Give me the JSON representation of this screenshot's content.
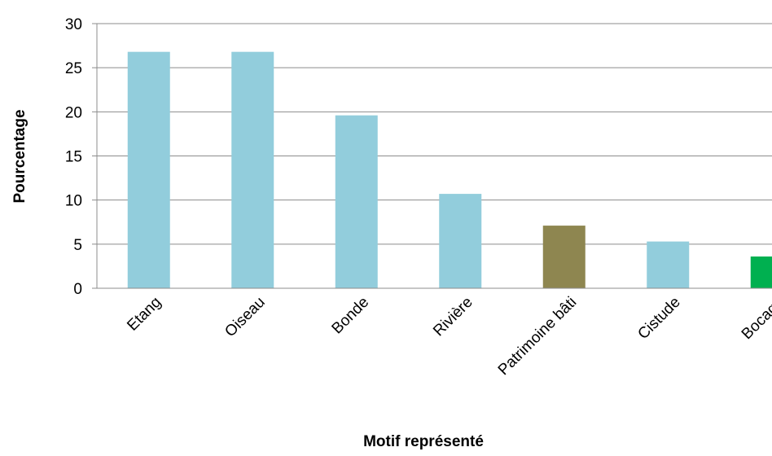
{
  "chart_data": {
    "type": "bar",
    "title": "",
    "xlabel": "Motif représenté",
    "ylabel": "Pourcentage",
    "ylim": [
      0,
      30
    ],
    "yticks": [
      0,
      5,
      10,
      15,
      20,
      25,
      30
    ],
    "ytick_labels": [
      "0",
      "5",
      "10",
      "15",
      "20",
      "25",
      "30"
    ],
    "grid": true,
    "legend": "none",
    "categories": [
      "Etang",
      "Oiseau",
      "Bonde",
      "Rivière",
      "Patrimoine bâti",
      "Cistude",
      "Bocage"
    ],
    "values": [
      26.8,
      26.8,
      19.6,
      10.7,
      7.1,
      5.3,
      3.6
    ],
    "colors": [
      "#92CDDC",
      "#92CDDC",
      "#92CDDC",
      "#92CDDC",
      "#8E8650",
      "#92CDDC",
      "#00B050"
    ]
  }
}
